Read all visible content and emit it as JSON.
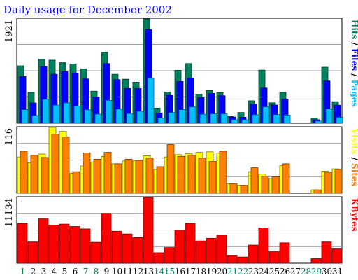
{
  "chart_data": {
    "type": "bar",
    "title": "Daily usage for December 2002",
    "days": [
      "1",
      "2",
      "3",
      "4",
      "5",
      "6",
      "7",
      "8",
      "9",
      "10",
      "11",
      "12",
      "13",
      "14",
      "15",
      "16",
      "17",
      "18",
      "19",
      "20",
      "21",
      "22",
      "23",
      "24",
      "25",
      "26",
      "27",
      "28",
      "29",
      "30",
      "31"
    ],
    "weekend_days": [
      "7",
      "8",
      "14",
      "15",
      "21",
      "22",
      "28",
      "29"
    ],
    "colors": {
      "hits": "#00805c",
      "files": "#0000ff",
      "pages": "#00c0ff",
      "visits": "#ffff00",
      "sites": "#ff8000",
      "kbytes": "#ff0000",
      "weekday": "#008040",
      "weekend": "#00805c"
    },
    "panels": [
      {
        "name": "hits-files-pages",
        "ymax": 1921,
        "ymax_label": "1921",
        "legend": [
          "Pages",
          "/",
          "Files",
          "/",
          "Hits"
        ],
        "series": [
          {
            "name": "Hits",
            "color": "#00805c",
            "values": [
              1057,
              568,
              1176,
              1161,
              1114,
              1091,
              1001,
              590,
              1306,
              900,
              810,
              755,
              1921,
              278,
              574,
              975,
              1098,
              536,
              603,
              565,
              123,
              198,
              413,
              978,
              376,
              568,
              0,
              0,
              97,
              1031,
              397
            ]
          },
          {
            "name": "Files",
            "color": "#0000ff",
            "values": [
              858,
              373,
              1041,
              901,
              952,
              924,
              814,
              484,
              1099,
              802,
              640,
              637,
              1725,
              187,
              512,
              769,
              829,
              472,
              549,
              505,
              114,
              110,
              353,
              647,
              335,
              443,
              0,
              0,
              65,
              778,
              332
            ]
          },
          {
            "name": "Pages",
            "color": "#00c0ff",
            "values": [
              251,
              142,
              441,
              333,
              375,
              315,
              248,
              167,
              421,
              260,
              178,
              219,
              827,
              97,
              197,
              250,
              300,
              165,
              172,
              172,
              64,
              64,
              157,
              301,
              159,
              151,
              0,
              0,
              40,
              265,
              110
            ]
          }
        ]
      },
      {
        "name": "visits-sites",
        "ymax": 116,
        "ymax_label": "116",
        "legend": [
          "Sites",
          "/",
          "Visits"
        ],
        "series": [
          {
            "name": "Visits",
            "color": "#ffff00",
            "values": [
              64,
              54,
              69,
              116,
              109,
              35,
              48,
              55,
              65,
              52,
              57,
              57,
              66,
              42,
              64,
              68,
              70,
              72,
              73,
              71,
              17,
              14,
              38,
              34,
              26,
              49,
              0,
              0,
              6,
              39,
              43
            ]
          },
          {
            "name": "Sites",
            "color": "#ff8000",
            "values": [
              74,
              67,
              63,
              104,
              99,
              38,
              71,
              60,
              72,
              52,
              60,
              58,
              62,
              47,
              86,
              65,
              67,
              62,
              56,
              74,
              17,
              14,
              45,
              30,
              29,
              52,
              0,
              0,
              6,
              37,
              42
            ]
          }
        ]
      },
      {
        "name": "kbytes",
        "ymax": 11134,
        "ymax_label": "11134",
        "legend": [
          "KBytes"
        ],
        "series": [
          {
            "name": "KBytes",
            "color": "#ff0000",
            "values": [
              6740,
              3600,
              7510,
              6470,
              6620,
              6210,
              5810,
              3540,
              8440,
              5410,
              4960,
              4340,
              11134,
              1780,
              2650,
              5600,
              6740,
              3770,
              4220,
              4750,
              1300,
              1050,
              3070,
              5990,
              1950,
              3450,
              0,
              0,
              770,
              3600,
              2420
            ]
          }
        ]
      }
    ]
  }
}
